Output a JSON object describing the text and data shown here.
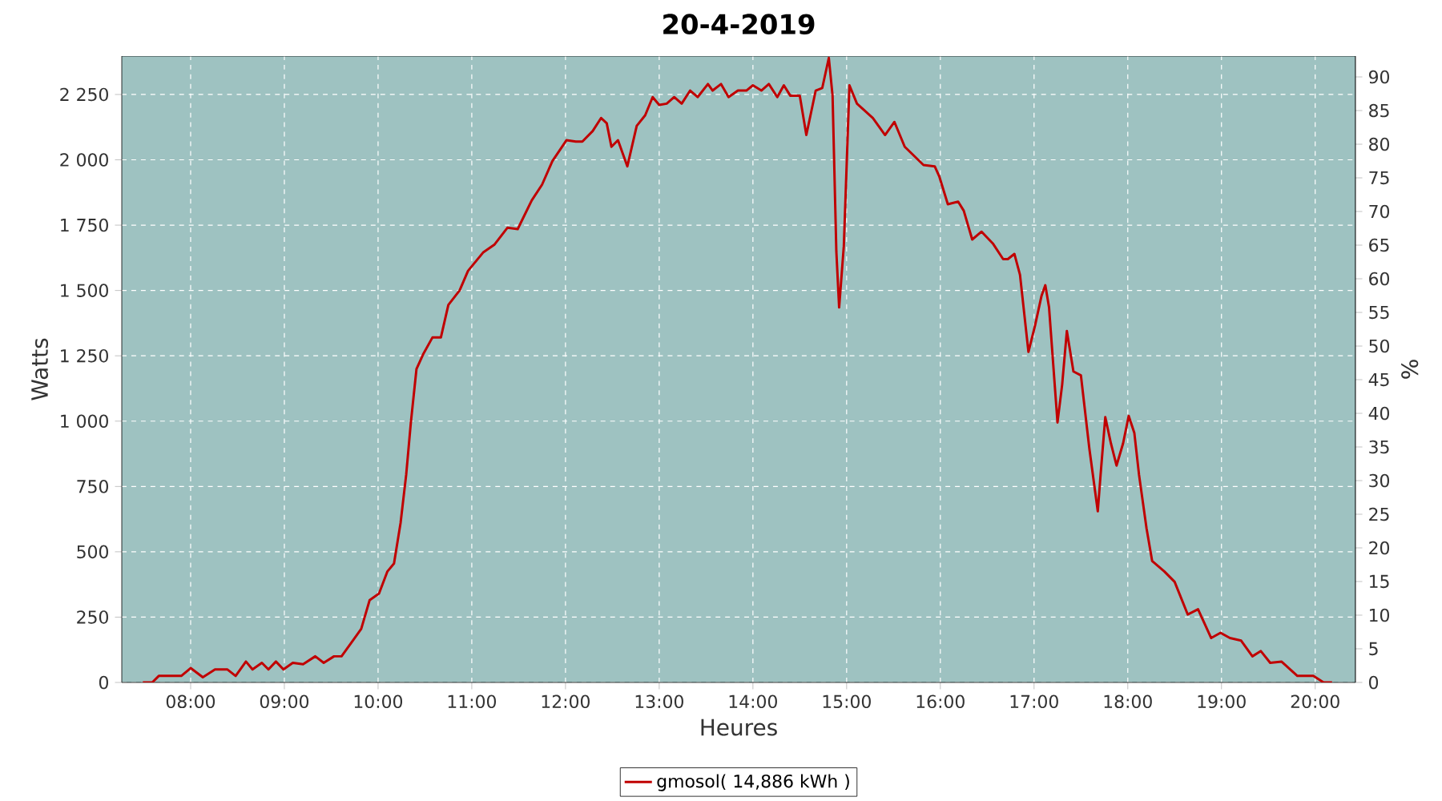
{
  "chart_data": {
    "type": "line",
    "title": "20-4-2019",
    "xlabel": "Heures",
    "ylabel": "Watts",
    "y2label": "%",
    "xlim": [
      7.265,
      20.43
    ],
    "ylim": [
      0,
      2397
    ],
    "y2lim": [
      0,
      93.1
    ],
    "xticks": [
      {
        "value": 8,
        "label": "08:00"
      },
      {
        "value": 9,
        "label": "09:00"
      },
      {
        "value": 10,
        "label": "10:00"
      },
      {
        "value": 11,
        "label": "11:00"
      },
      {
        "value": 12,
        "label": "12:00"
      },
      {
        "value": 13,
        "label": "13:00"
      },
      {
        "value": 14,
        "label": "14:00"
      },
      {
        "value": 15,
        "label": "15:00"
      },
      {
        "value": 16,
        "label": "16:00"
      },
      {
        "value": 17,
        "label": "17:00"
      },
      {
        "value": 18,
        "label": "18:00"
      },
      {
        "value": 19,
        "label": "19:00"
      },
      {
        "value": 20,
        "label": "20:00"
      }
    ],
    "yticks": [
      0,
      250,
      500,
      750,
      {
        "value": 1000,
        "label": "1 000"
      },
      {
        "value": 1250,
        "label": "1 250"
      },
      {
        "value": 1500,
        "label": "1 500"
      },
      {
        "value": 1750,
        "label": "1 750"
      },
      {
        "value": 2000,
        "label": "2 000"
      },
      {
        "value": 2250,
        "label": "2 250"
      }
    ],
    "y2ticks": [
      0,
      5,
      10,
      15,
      20,
      25,
      30,
      35,
      40,
      45,
      50,
      55,
      60,
      65,
      70,
      75,
      80,
      85,
      90
    ],
    "grid": true,
    "legend": "bottom",
    "line_style": "solid",
    "series": [
      {
        "name": "gmosol( 14,886 kWh )",
        "color": "#c00000",
        "x": [
          7.49,
          7.59,
          7.66,
          7.9,
          8.0,
          8.13,
          8.26,
          8.39,
          8.48,
          8.59,
          8.66,
          8.76,
          8.83,
          8.91,
          8.99,
          9.09,
          9.2,
          9.33,
          9.42,
          9.53,
          9.61,
          9.73,
          9.82,
          9.91,
          10.01,
          10.1,
          10.17,
          10.24,
          10.3,
          10.35,
          10.41,
          10.48,
          10.58,
          10.67,
          10.75,
          10.87,
          10.96,
          11.12,
          11.24,
          11.38,
          11.49,
          11.64,
          11.75,
          11.86,
          12.01,
          12.11,
          12.18,
          12.29,
          12.38,
          12.44,
          12.49,
          12.56,
          12.66,
          12.76,
          12.85,
          12.93,
          13.0,
          13.08,
          13.16,
          13.24,
          13.33,
          13.41,
          13.52,
          13.57,
          13.66,
          13.74,
          13.84,
          13.93,
          14.0,
          14.09,
          14.17,
          14.26,
          14.33,
          14.4,
          14.5,
          14.57,
          14.67,
          14.74,
          14.81,
          14.85,
          14.89,
          14.92,
          14.97,
          15.03,
          15.11,
          15.28,
          15.41,
          15.51,
          15.62,
          15.82,
          15.94,
          15.99,
          16.08,
          16.19,
          16.25,
          16.34,
          16.44,
          16.56,
          16.67,
          16.72,
          16.79,
          16.85,
          16.94,
          17.01,
          17.08,
          17.12,
          17.16,
          17.25,
          17.3,
          17.35,
          17.42,
          17.5,
          17.59,
          17.68,
          17.71,
          17.76,
          17.82,
          17.88,
          17.95,
          18.01,
          18.07,
          18.12,
          18.2,
          18.26,
          18.39,
          18.5,
          18.64,
          18.75,
          18.89,
          18.99,
          19.09,
          19.21,
          19.33,
          19.42,
          19.52,
          19.64,
          19.81,
          19.98,
          20.09,
          20.18
        ],
        "values": [
          0,
          0,
          25,
          25,
          55,
          20,
          50,
          50,
          25,
          80,
          50,
          75,
          50,
          80,
          50,
          75,
          70,
          100,
          75,
          100,
          100,
          160,
          205,
          315,
          340,
          425,
          455,
          610,
          795,
          995,
          1200,
          1255,
          1320,
          1320,
          1445,
          1500,
          1575,
          1645,
          1675,
          1740,
          1735,
          1845,
          1905,
          1995,
          2075,
          2070,
          2070,
          2110,
          2160,
          2140,
          2050,
          2075,
          1975,
          2130,
          2170,
          2240,
          2210,
          2215,
          2240,
          2215,
          2265,
          2240,
          2290,
          2265,
          2290,
          2240,
          2265,
          2265,
          2285,
          2265,
          2290,
          2240,
          2285,
          2245,
          2245,
          2095,
          2265,
          2275,
          2390,
          2245,
          1650,
          1435,
          1670,
          2285,
          2215,
          2160,
          2095,
          2145,
          2050,
          1980,
          1975,
          1935,
          1830,
          1840,
          1805,
          1695,
          1725,
          1680,
          1620,
          1620,
          1640,
          1560,
          1265,
          1365,
          1480,
          1520,
          1435,
          995,
          1140,
          1345,
          1190,
          1175,
          895,
          655,
          795,
          1015,
          915,
          830,
          915,
          1020,
          955,
          795,
          590,
          465,
          425,
          385,
          260,
          280,
          170,
          190,
          170,
          160,
          100,
          120,
          75,
          80,
          25,
          25,
          0,
          0
        ]
      }
    ]
  }
}
